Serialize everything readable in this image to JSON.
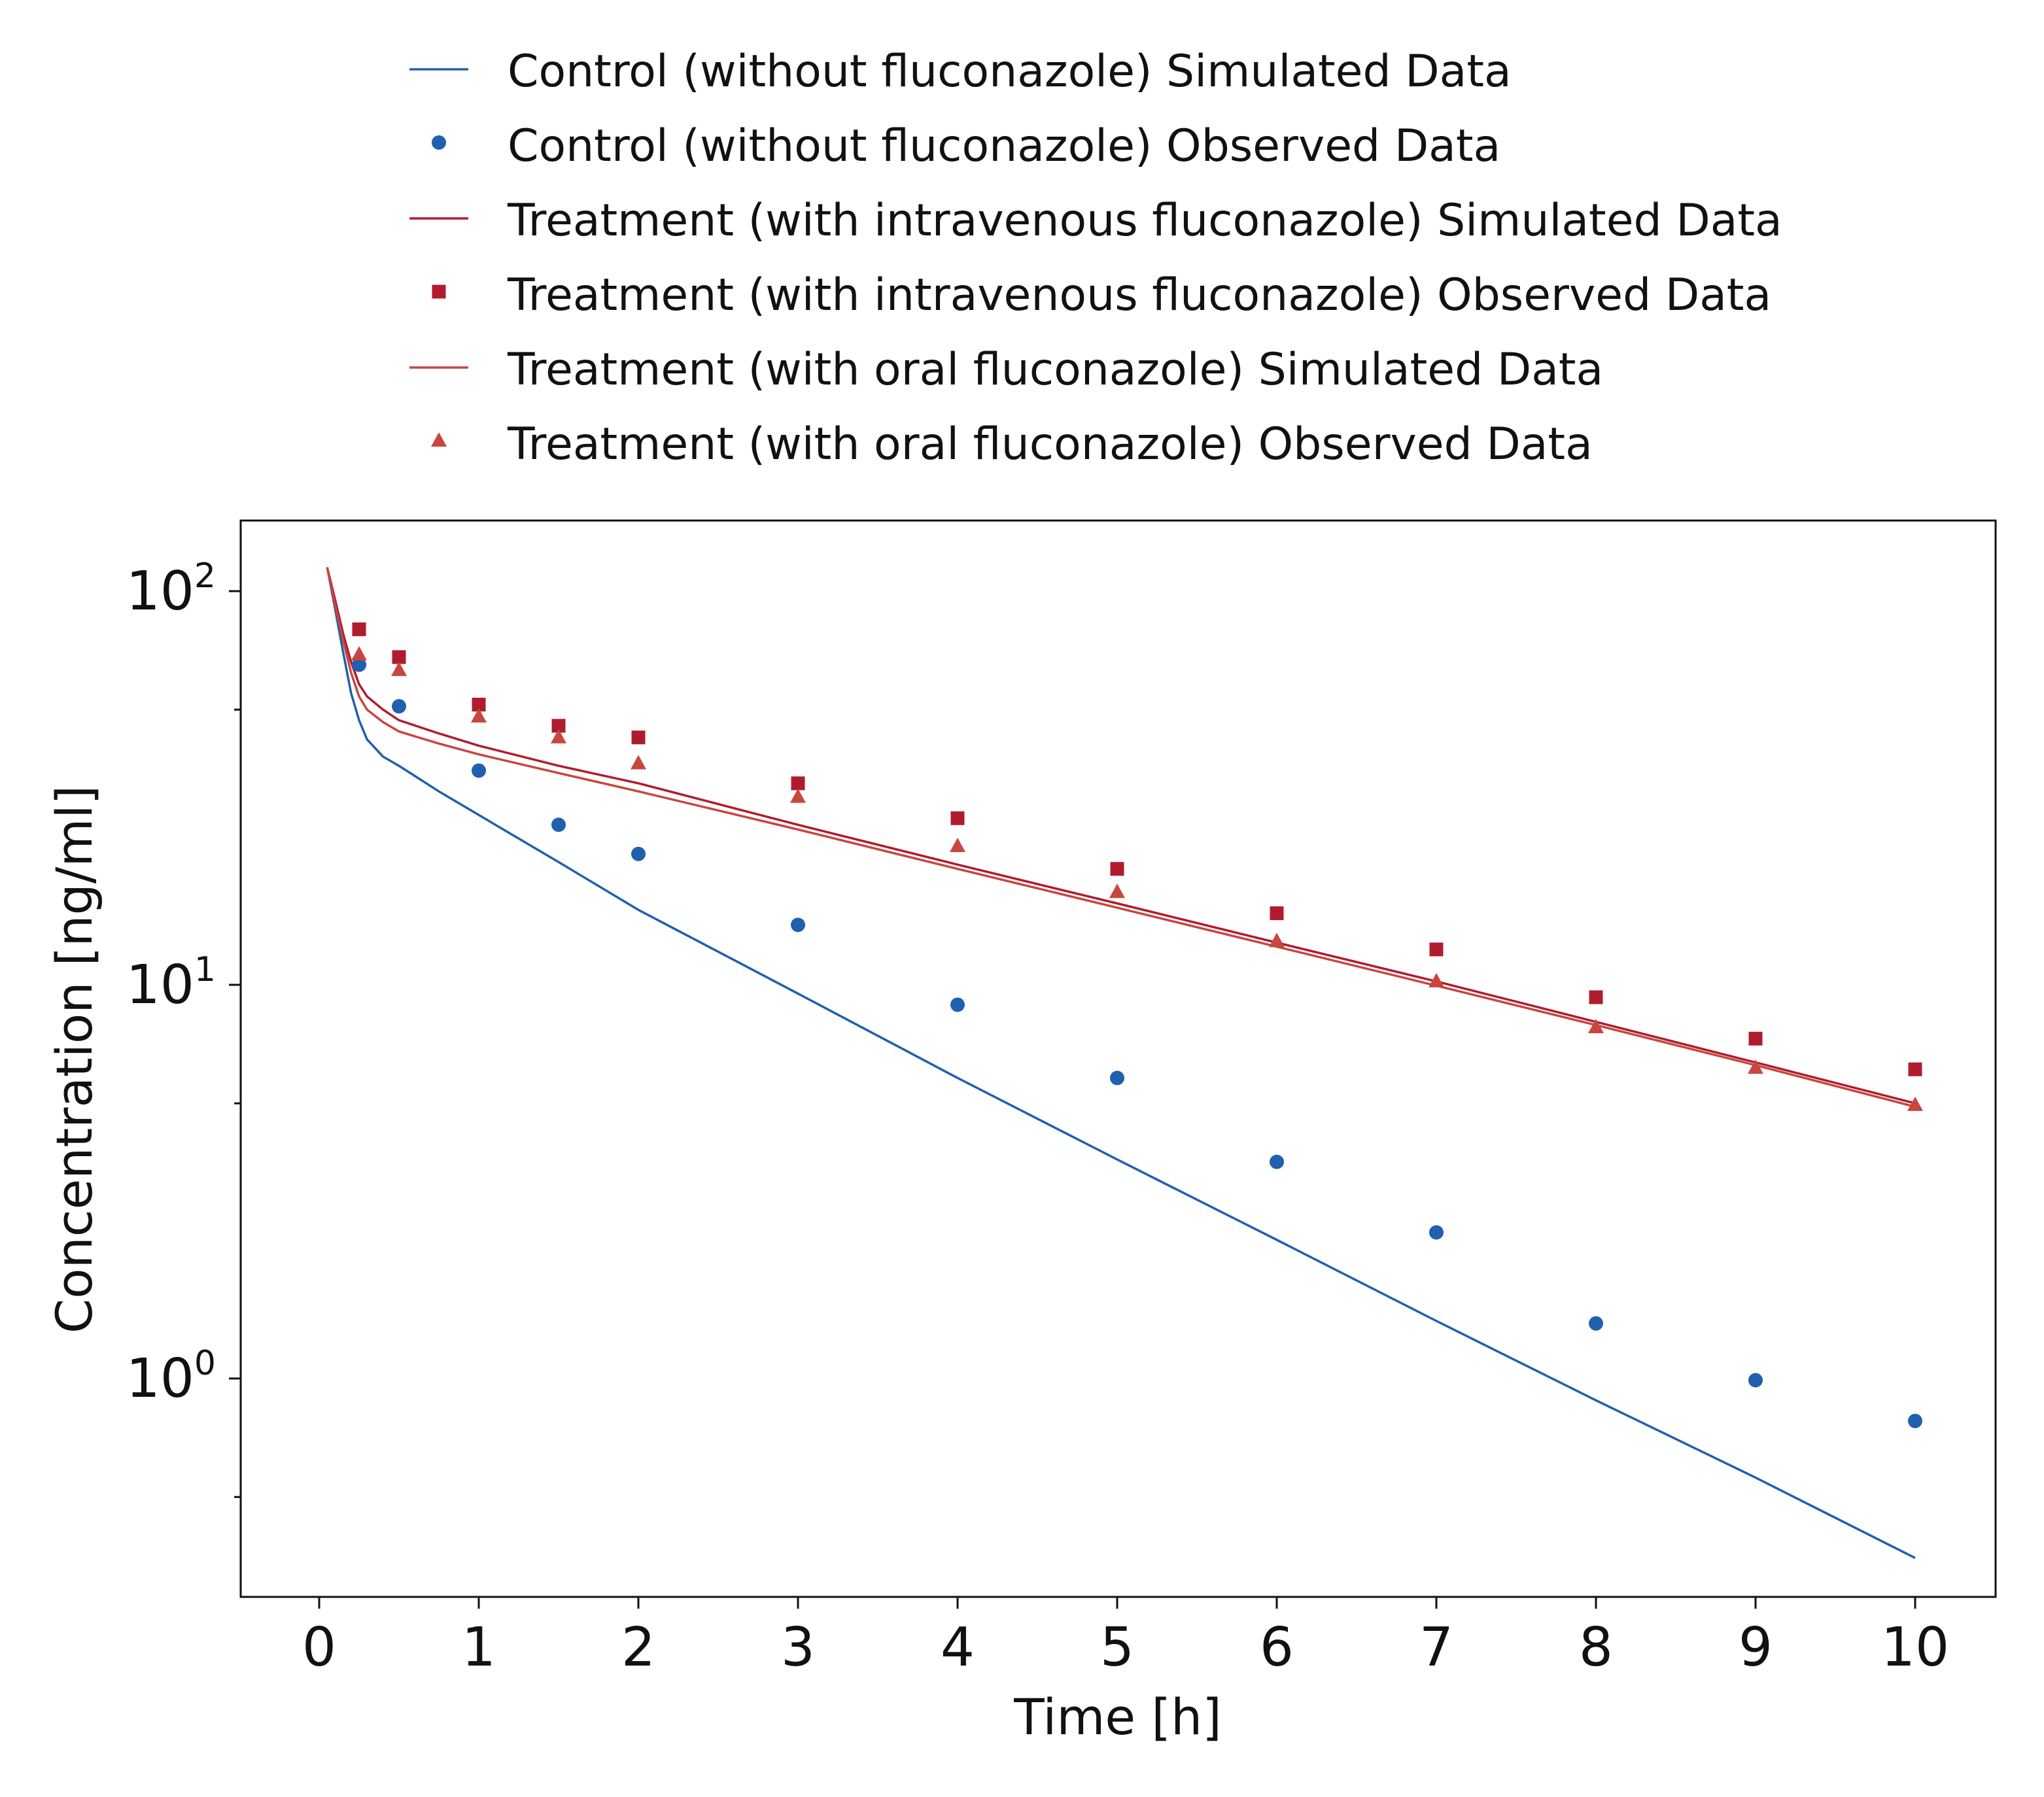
{
  "colors": {
    "control": "#2060ae",
    "iv": "#b01c2e",
    "oral": "#c8463e",
    "axis": "#111111",
    "background": "#ffffff"
  },
  "legend": [
    {
      "label": "Control (without fluconazole) Simulated Data",
      "kind": "line",
      "series": "control"
    },
    {
      "label": "Control (without fluconazole) Observed Data",
      "kind": "circle",
      "series": "control"
    },
    {
      "label": "Treatment (with intravenous fluconazole) Simulated Data",
      "kind": "line",
      "series": "iv"
    },
    {
      "label": "Treatment (with intravenous fluconazole) Observed Data",
      "kind": "square",
      "series": "iv"
    },
    {
      "label": "Treatment (with oral fluconazole) Simulated Data",
      "kind": "line",
      "series": "oral"
    },
    {
      "label": "Treatment (with oral fluconazole) Observed Data",
      "kind": "triangle",
      "series": "oral"
    }
  ],
  "chart_data": {
    "type": "scatter",
    "xlabel": "Time [h]",
    "ylabel": "Concentration [ng/ml]",
    "xlim": [
      -0.5,
      10.5
    ],
    "ylim": [
      0.28,
      160
    ],
    "yscale": "log",
    "grid": false,
    "legend_position": "top",
    "x_ticks": [
      0,
      1,
      2,
      3,
      4,
      5,
      6,
      7,
      8,
      9,
      10
    ],
    "y_ticks": [
      {
        "value": 1,
        "base": "10",
        "exp": "0"
      },
      {
        "value": 10,
        "base": "10",
        "exp": "1"
      },
      {
        "value": 100,
        "base": "10",
        "exp": "2"
      }
    ],
    "y_minor_ticks": [
      0.5,
      5,
      50
    ],
    "series": [
      {
        "name": "Control (without fluconazole) Simulated Data",
        "kind": "line",
        "color_key": "control",
        "x": [
          0.05,
          0.1,
          0.15,
          0.2,
          0.25,
          0.3,
          0.4,
          0.5,
          0.75,
          1,
          1.5,
          2,
          3,
          4,
          5,
          6,
          7,
          8,
          9,
          10
        ],
        "y": [
          115,
          90,
          70,
          55,
          47,
          42,
          38,
          36,
          31,
          27,
          20.5,
          15.5,
          9.5,
          5.8,
          3.6,
          2.25,
          1.4,
          0.88,
          0.56,
          0.35
        ]
      },
      {
        "name": "Control (without fluconazole) Observed Data",
        "kind": "circle",
        "color_key": "control",
        "x": [
          0.25,
          0.5,
          1,
          1.5,
          2,
          3,
          4,
          5,
          6,
          7,
          8,
          9,
          10
        ],
        "y": [
          65,
          51,
          35,
          25.5,
          21.5,
          14.2,
          8.9,
          5.8,
          3.55,
          2.35,
          1.38,
          0.99,
          0.78
        ]
      },
      {
        "name": "Treatment (with intravenous fluconazole) Simulated Data",
        "kind": "line",
        "color_key": "iv",
        "x": [
          0.05,
          0.1,
          0.15,
          0.2,
          0.25,
          0.3,
          0.4,
          0.5,
          0.75,
          1,
          1.5,
          2,
          3,
          4,
          5,
          6,
          7,
          8,
          9,
          10
        ],
        "y": [
          115,
          95,
          78,
          66,
          58,
          54,
          50,
          47,
          43.5,
          40.5,
          36,
          32.5,
          25.5,
          20.2,
          16.1,
          12.8,
          10.2,
          8.05,
          6.35,
          5
        ]
      },
      {
        "name": "Treatment (with intravenous fluconazole) Observed Data",
        "kind": "square",
        "color_key": "iv",
        "x": [
          0.25,
          0.5,
          1,
          1.5,
          2,
          3,
          4,
          5,
          6,
          7,
          8,
          9,
          10
        ],
        "y": [
          80,
          68,
          51.5,
          45.5,
          42.5,
          32.5,
          26.5,
          19.7,
          15.2,
          12.3,
          9.3,
          7.3,
          6.1
        ]
      },
      {
        "name": "Treatment (with oral fluconazole) Simulated Data",
        "kind": "line",
        "color_key": "oral",
        "x": [
          0.05,
          0.1,
          0.15,
          0.2,
          0.25,
          0.3,
          0.4,
          0.5,
          0.75,
          1,
          1.5,
          2,
          3,
          4,
          5,
          6,
          7,
          8,
          9,
          10
        ],
        "y": [
          115,
          92,
          75,
          62,
          54,
          50,
          46.5,
          44,
          41,
          38.5,
          34.5,
          31,
          24.8,
          19.7,
          15.7,
          12.5,
          9.95,
          7.9,
          6.25,
          4.9
        ]
      },
      {
        "name": "Treatment (with oral fluconazole) Observed Data",
        "kind": "triangle",
        "color_key": "oral",
        "x": [
          0.25,
          0.5,
          1,
          1.5,
          2,
          3,
          4,
          5,
          6,
          7,
          8,
          9,
          10
        ],
        "y": [
          69,
          63,
          48,
          42.5,
          36.5,
          30,
          22.5,
          17.2,
          12.9,
          10.2,
          7.8,
          6.15,
          4.95
        ]
      }
    ]
  }
}
